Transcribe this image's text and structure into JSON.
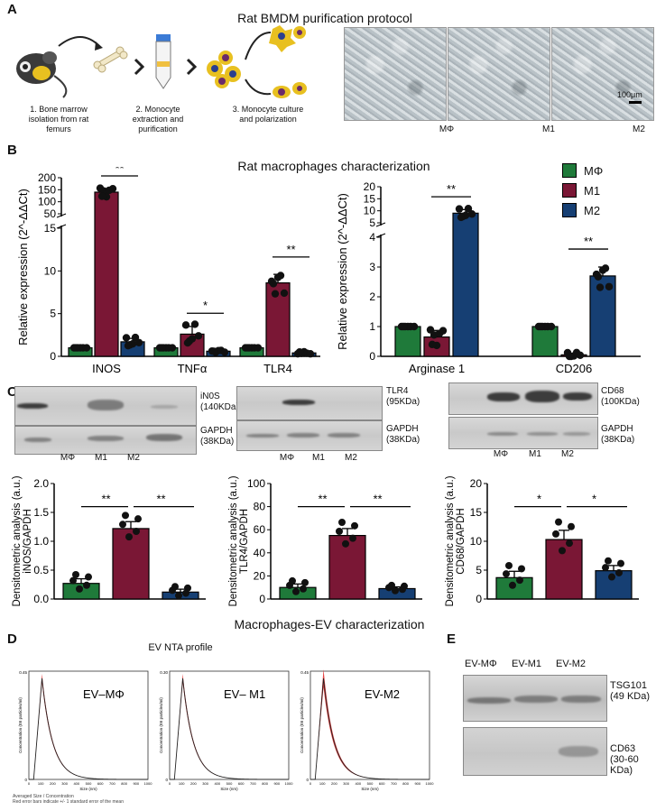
{
  "panel_a": {
    "letter": "A",
    "title": "Rat BMDM purification protocol",
    "steps": [
      {
        "lines": [
          "1. Bone marrow",
          "isolation from rat",
          "femurs"
        ]
      },
      {
        "lines": [
          "2. Monocyte",
          "extraction and",
          "purification"
        ]
      },
      {
        "lines": [
          "3. Monocyte culture",
          "and  polarization"
        ]
      }
    ],
    "micrographs": [
      "MΦ",
      "M1",
      "M2"
    ],
    "scale_bar": "100μm"
  },
  "panel_b": {
    "letter": "B",
    "title": "Rat macrophages characterization",
    "legend": [
      "MΦ",
      "M1",
      "M2"
    ]
  },
  "panel_c": {
    "letter": "C",
    "blots": [
      {
        "target": [
          "iN0S",
          "(140KDa)"
        ],
        "loading": [
          "GAPDH",
          "(38KDa)"
        ],
        "lanes": [
          "MΦ",
          "M1",
          "M2"
        ]
      },
      {
        "target": [
          "TLR4",
          "(95KDa)"
        ],
        "loading": [
          "GAPDH",
          "(38KDa)"
        ],
        "lanes": [
          "MΦ",
          "M1",
          "M2"
        ]
      },
      {
        "target": [
          "CD68",
          "(100KDa)"
        ],
        "loading": [
          "GAPDH",
          "(38KDa)"
        ],
        "lanes": [
          "MΦ",
          "M1",
          "M2"
        ]
      }
    ]
  },
  "panel_d": {
    "letter": "D",
    "title": "Macrophages-EV characterization",
    "subtitle": "EV NTA profile",
    "profiles": [
      {
        "label": "EV–MΦ",
        "ymax_label": "0.45"
      },
      {
        "label": "EV– M1",
        "ymax_label": "0.30"
      },
      {
        "label": "EV-M2",
        "ymax_label": "0.45"
      }
    ],
    "y_axis": "Concentration (E6 particles/ml)",
    "x_axis": "Size (nm)",
    "x_ticks": [
      "0",
      "100",
      "200",
      "300",
      "400",
      "500",
      "600",
      "700",
      "800",
      "900",
      "1000"
    ],
    "footnote_1": "Averaged Size / Concentration",
    "footnote_2": "Red error bars indicate +/- 1 standard error of the mean"
  },
  "panel_e": {
    "letter": "E",
    "lanes": [
      "EV-MΦ",
      "EV-M1",
      "EV-M2"
    ],
    "blots": [
      {
        "lines": [
          "TSG101",
          "(49 KDa)"
        ]
      },
      {
        "lines": [
          "CD63",
          "(30-60 KDa)"
        ]
      }
    ]
  },
  "colors": {
    "MPhi": "#1f7a3a",
    "M1": "#7a1735",
    "M2": "#163f73",
    "nta_red": "#e02020"
  },
  "chart_data": [
    {
      "type": "bar",
      "id": "qpcr_left",
      "title": "",
      "ylabel": "Relative expression (2^-ΔΔCt)",
      "categories": [
        "iNOS",
        "TNFα",
        "TLR4"
      ],
      "category_labels": [
        "INOS",
        "TNFα",
        "TLR4"
      ],
      "series": [
        {
          "name": "MΦ",
          "values": [
            1,
            1,
            1
          ]
        },
        {
          "name": "M1",
          "values": [
            140,
            2.6,
            8.6
          ]
        },
        {
          "name": "M2",
          "values": [
            1.7,
            0.6,
            0.4
          ]
        }
      ],
      "error": {
        "M1": [
          15,
          0.9,
          1.0
        ],
        "M2": [
          0.4,
          0.1,
          0.1
        ]
      },
      "y_break": {
        "lower": [
          0,
          15
        ],
        "upper": [
          50,
          200
        ]
      },
      "y_ticks_lower": [
        "0",
        "5",
        "10",
        "15"
      ],
      "y_ticks_upper": [
        "50",
        "100",
        "150",
        "200"
      ],
      "significance": [
        {
          "category": "iNOS",
          "label": "**"
        },
        {
          "category": "TNFα",
          "label": "*"
        },
        {
          "category": "TLR4",
          "label": "**"
        }
      ]
    },
    {
      "type": "bar",
      "id": "qpcr_right",
      "ylabel": "Relative expression (2^-ΔΔCt)",
      "categories": [
        "Arginase 1",
        "CD206"
      ],
      "category_labels": [
        "Arginase 1",
        "CD206"
      ],
      "series": [
        {
          "name": "MΦ",
          "values": [
            1,
            1
          ]
        },
        {
          "name": "M1",
          "values": [
            0.65,
            0.05
          ]
        },
        {
          "name": "M2",
          "values": [
            9,
            2.7
          ]
        }
      ],
      "error": {
        "M1": [
          0.22,
          0.02
        ],
        "M2": [
          1.5,
          0.3
        ]
      },
      "y_break": {
        "lower": [
          0,
          4
        ],
        "upper": [
          5,
          20
        ]
      },
      "y_ticks_lower": [
        "0",
        "1",
        "2",
        "3",
        "4"
      ],
      "y_ticks_upper": [
        "5",
        "10",
        "15",
        "20"
      ],
      "significance": [
        {
          "category": "Arginase 1",
          "label": "**"
        },
        {
          "category": "CD206",
          "label": "**"
        }
      ]
    },
    {
      "type": "bar",
      "id": "dens_inos",
      "ylabel": "Densitometric analysis (a.u.)",
      "ylabel2": "iNOS/GAPDH",
      "categories": [
        "MΦ",
        "M1",
        "M2"
      ],
      "values": [
        0.27,
        1.22,
        0.12
      ],
      "error": [
        0.08,
        0.12,
        0.05
      ],
      "ylim": [
        0,
        2.0
      ],
      "y_ticks": [
        "0.0",
        "0.5",
        "1.0",
        "1.5",
        "2.0"
      ],
      "significance": [
        {
          "label": "**"
        },
        {
          "label": "**"
        }
      ]
    },
    {
      "type": "bar",
      "id": "dens_tlr4",
      "ylabel": "Densitometric analysis (a.u.)",
      "ylabel2": "TLR4/GAPDH",
      "categories": [
        "MΦ",
        "M1",
        "M2"
      ],
      "values": [
        10,
        55,
        9
      ],
      "error": [
        3,
        6,
        1.5
      ],
      "ylim": [
        0,
        100
      ],
      "y_ticks": [
        "0",
        "20",
        "40",
        "60",
        "80",
        "100"
      ],
      "significance": [
        {
          "label": "**"
        },
        {
          "label": "**"
        }
      ]
    },
    {
      "type": "bar",
      "id": "dens_cd68",
      "ylabel": "Densitometric analysis (a.u.)",
      "ylabel2": "CD68/GAPDH",
      "categories": [
        "MΦ",
        "M1",
        "M2"
      ],
      "values": [
        3.7,
        10.3,
        4.9
      ],
      "error": [
        1.1,
        1.6,
        0.9
      ],
      "ylim": [
        0,
        20
      ],
      "y_ticks": [
        "0",
        "5",
        "10",
        "15",
        "20"
      ],
      "significance": [
        {
          "label": "*"
        },
        {
          "label": "*"
        }
      ]
    }
  ]
}
